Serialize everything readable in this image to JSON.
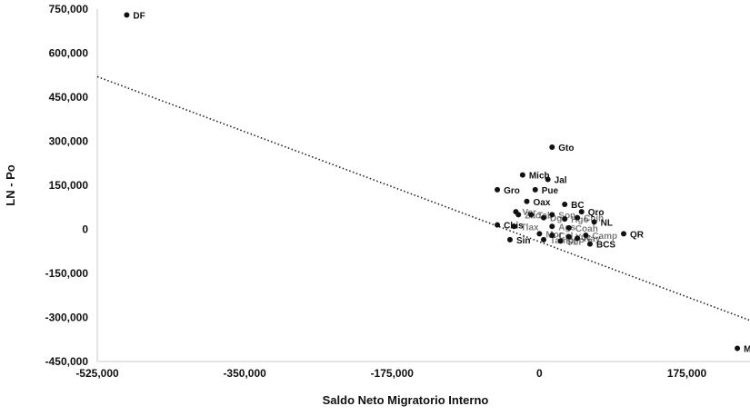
{
  "chart_data": {
    "type": "scatter",
    "title": "",
    "xlabel": "Saldo Neto Migratorio Interno",
    "ylabel": "LN - Po",
    "xlim": [
      -525000,
      250000
    ],
    "ylim": [
      -450000,
      750000
    ],
    "x_ticks": [
      "-525,000",
      "-350,000",
      "-175,000",
      "0",
      "175,000"
    ],
    "x_tick_values": [
      -525000,
      -350000,
      -175000,
      0,
      175000
    ],
    "y_ticks": [
      "750,000",
      "600,000",
      "450,000",
      "300,000",
      "150,000",
      "0",
      "-150,000",
      "-300,000",
      "-450,000"
    ],
    "y_tick_values": [
      750000,
      600000,
      450000,
      300000,
      150000,
      0,
      -150000,
      -300000,
      -450000
    ],
    "grid": false,
    "trendline": {
      "style": "dotted",
      "from": [
        -525000,
        520000
      ],
      "to": [
        250000,
        -310000
      ]
    },
    "points": [
      {
        "label": "DF",
        "x": -490000,
        "y": 730000
      },
      {
        "label": "Gto",
        "x": 15000,
        "y": 280000
      },
      {
        "label": "Mich",
        "x": -20000,
        "y": 185000
      },
      {
        "label": "Jal",
        "x": 10000,
        "y": 170000
      },
      {
        "label": "Gro",
        "x": -50000,
        "y": 135000
      },
      {
        "label": "Pue",
        "x": -5000,
        "y": 135000
      },
      {
        "label": "Oax",
        "x": -15000,
        "y": 95000
      },
      {
        "label": "BC",
        "x": 30000,
        "y": 85000
      },
      {
        "label": "Qro",
        "x": 50000,
        "y": 60000
      },
      {
        "label": "Ver",
        "x": -28000,
        "y": 60000
      },
      {
        "label": "Zac",
        "x": -25000,
        "y": 50000
      },
      {
        "label": "Son",
        "x": 15000,
        "y": 50000
      },
      {
        "label": "Tab",
        "x": -10000,
        "y": 50000
      },
      {
        "label": "Dgo",
        "x": 5000,
        "y": 40000
      },
      {
        "label": "Hgo",
        "x": 30000,
        "y": 35000
      },
      {
        "label": "Chih",
        "x": 45000,
        "y": 40000
      },
      {
        "label": "NL",
        "x": 65000,
        "y": 25000
      },
      {
        "label": "Chis",
        "x": -50000,
        "y": 15000
      },
      {
        "label": "Tlax",
        "x": -30000,
        "y": 10000
      },
      {
        "label": "Ags",
        "x": 15000,
        "y": 10000
      },
      {
        "label": "Coah",
        "x": 35000,
        "y": 5000
      },
      {
        "label": "Sin",
        "x": -35000,
        "y": -35000
      },
      {
        "label": "Col",
        "x": 15000,
        "y": -20000
      },
      {
        "label": "Yuc",
        "x": 35000,
        "y": -25000
      },
      {
        "label": "Nay",
        "x": 45000,
        "y": -30000
      },
      {
        "label": "Tamps",
        "x": 5000,
        "y": -35000
      },
      {
        "label": "SLP",
        "x": 25000,
        "y": -40000
      },
      {
        "label": "Camp",
        "x": 55000,
        "y": -20000
      },
      {
        "label": "Mor",
        "x": 0,
        "y": -15000
      },
      {
        "label": "BCS",
        "x": 60000,
        "y": -50000
      },
      {
        "label": "QR",
        "x": 100000,
        "y": -15000
      },
      {
        "label": "Méx",
        "x": 235000,
        "y": -405000
      }
    ],
    "visible_labels": [
      "DF",
      "Gto",
      "Mich",
      "Jal",
      "Gro",
      "Pue",
      "Oax",
      "BC",
      "Qro",
      "NL",
      "Chis",
      "Sin",
      "BCS",
      "QR",
      "Méx"
    ]
  }
}
